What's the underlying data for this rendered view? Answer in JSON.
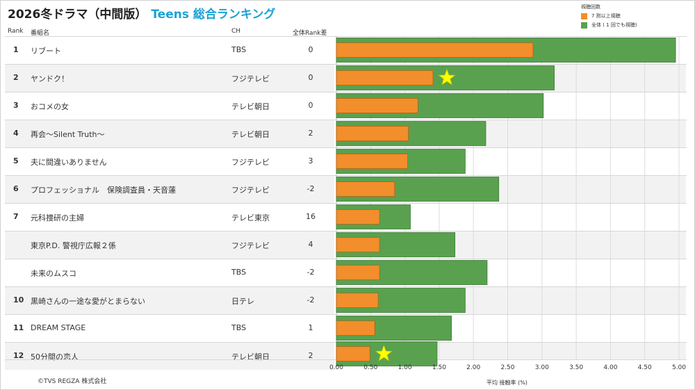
{
  "title": {
    "main": "2026冬ドラマ（中間版）",
    "accent": "Teens 総合ランキング"
  },
  "legend": {
    "title": "視聴回数",
    "items": [
      {
        "label": "7 割以上視聴",
        "color": "#f28e2b"
      },
      {
        "label": "全体 ( 1 回でも視聴)",
        "color": "#59a14f"
      }
    ]
  },
  "headers": {
    "rank": "Rank",
    "program": "番組名",
    "ch": "CH",
    "diff": "全体Rank差"
  },
  "rows": [
    {
      "rank": "1",
      "name": "リブート",
      "ch": "TBS",
      "diff": "0"
    },
    {
      "rank": "2",
      "name": "ヤンドク！",
      "ch": "フジテレビ",
      "diff": "0"
    },
    {
      "rank": "3",
      "name": "おコメの女",
      "ch": "テレビ朝日",
      "diff": "0"
    },
    {
      "rank": "4",
      "name": "再会～Silent Truth～",
      "ch": "テレビ朝日",
      "diff": "2"
    },
    {
      "rank": "5",
      "name": "夫に間違いありません",
      "ch": "フジテレビ",
      "diff": "3"
    },
    {
      "rank": "6",
      "name": "プロフェッショナル　保険調査員・天音蓮",
      "ch": "フジテレビ",
      "diff": "-2"
    },
    {
      "rank": "7",
      "name": "元科捜研の主婦",
      "ch": "テレビ東京",
      "diff": "16"
    },
    {
      "rank": "",
      "name": "東京P.D. 警視庁広報２係",
      "ch": "フジテレビ",
      "diff": "4"
    },
    {
      "rank": "",
      "name": "未来のムスコ",
      "ch": "TBS",
      "diff": "-2"
    },
    {
      "rank": "10",
      "name": "黒崎さんの一途な愛がとまらない",
      "ch": "日テレ",
      "diff": "-2"
    },
    {
      "rank": "11",
      "name": "DREAM STAGE",
      "ch": "TBS",
      "diff": "1"
    },
    {
      "rank": "12",
      "name": "50分間の恋人",
      "ch": "テレビ朝日",
      "diff": "2"
    }
  ],
  "chart_data": {
    "type": "bar",
    "orientation": "horizontal",
    "xlabel": "平均 接触率 (%)",
    "xlim": [
      0,
      5.0
    ],
    "ticks": [
      "0.00",
      "0.50",
      "1.00",
      "1.50",
      "2.00",
      "2.50",
      "3.00",
      "3.50",
      "4.00",
      "4.50",
      "5.00"
    ],
    "tick_values": [
      0,
      0.5,
      1,
      1.5,
      2,
      2.5,
      3,
      3.5,
      4,
      4.5,
      5
    ],
    "categories": [
      "リブート",
      "ヤンドク！",
      "おコメの女",
      "再会～Silent Truth～",
      "夫に間違いありません",
      "プロフェッショナル　保険調査員・天音蓮",
      "元科捜研の主婦",
      "東京P.D. 警視庁広報２係",
      "未来のムスコ",
      "黒崎さんの一途な愛がとまらない",
      "DREAM STAGE",
      "50分間の恋人"
    ],
    "series": [
      {
        "name": "全体 ( 1 回でも視聴)",
        "color": "#59a14f",
        "values": [
          4.95,
          3.18,
          3.02,
          2.18,
          1.88,
          2.37,
          1.08,
          1.73,
          2.2,
          1.88,
          1.68,
          1.47
        ]
      },
      {
        "name": "7 割以上視聴",
        "color": "#f28e2b",
        "values": [
          2.87,
          1.41,
          1.19,
          1.05,
          1.04,
          0.85,
          0.63,
          0.63,
          0.63,
          0.61,
          0.56,
          0.49
        ]
      }
    ],
    "star_rows": [
      1,
      11
    ],
    "grid": true
  },
  "footer": "©TVS REGZA 株式会社"
}
